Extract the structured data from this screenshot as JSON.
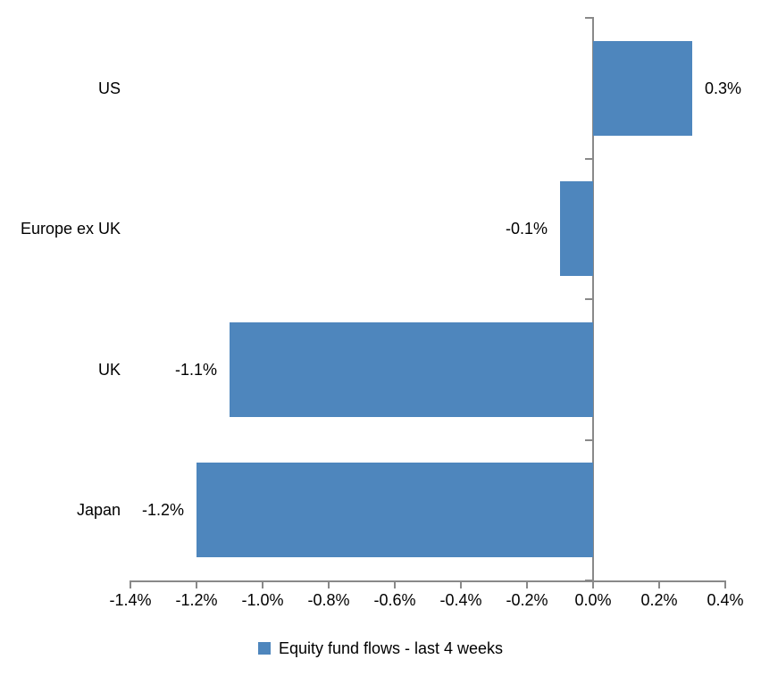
{
  "chart_data": {
    "type": "bar",
    "orientation": "horizontal",
    "title": "",
    "xlabel": "",
    "ylabel": "",
    "categories": [
      "US",
      "Europe ex UK",
      "UK",
      "Japan"
    ],
    "series": [
      {
        "name": "Equity fund flows - last 4 weeks",
        "values": [
          0.3,
          -0.1,
          -1.1,
          -1.2
        ],
        "data_labels": [
          "0.3%",
          "-0.1%",
          "-1.1%",
          "-1.2%"
        ]
      }
    ],
    "xlim": [
      -1.4,
      0.4
    ],
    "x_tick_step": 0.2,
    "x_tick_labels": [
      "-1.4%",
      "-1.2%",
      "-1.0%",
      "-0.8%",
      "-0.6%",
      "-0.4%",
      "-0.2%",
      "0.0%",
      "0.2%",
      "0.4%"
    ],
    "grid": false,
    "legend_position": "bottom",
    "colors": {
      "bar": "#4E86BD",
      "axis": "#898989",
      "text": "#000000",
      "background": "#FFFFFF"
    }
  }
}
